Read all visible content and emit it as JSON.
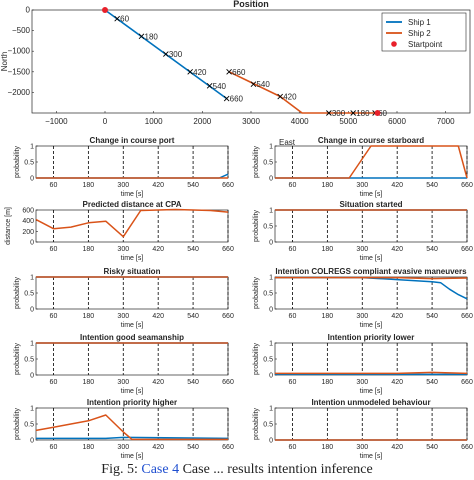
{
  "chart_data": [
    {
      "id": "position",
      "type": "line",
      "title": "Position",
      "xlabel": "East",
      "ylabel": "North",
      "xlim": [
        -1500,
        7500
      ],
      "ylim": [
        -2500,
        0
      ],
      "xticks": [
        -1000,
        0,
        1000,
        2000,
        3000,
        4000,
        5000,
        6000,
        7000
      ],
      "yticks": [
        0,
        -500,
        -1000,
        -1500,
        -2000
      ],
      "grid": false,
      "legend": "top-right",
      "series": [
        {
          "name": "Ship 1",
          "color": "#0072bd",
          "x": [
            0,
            2500
          ],
          "y": [
            0,
            -2150
          ],
          "markers": [
            {
              "x": 250,
              "y": -210,
              "label": "60"
            },
            {
              "x": 750,
              "y": -640,
              "label": "180"
            },
            {
              "x": 1250,
              "y": -1070,
              "label": "300"
            },
            {
              "x": 1750,
              "y": -1500,
              "label": "420"
            },
            {
              "x": 2150,
              "y": -1840,
              "label": "540"
            },
            {
              "x": 2500,
              "y": -2150,
              "label": "660"
            }
          ]
        },
        {
          "name": "Ship 2",
          "color": "#d95319",
          "x": [
            5600,
            4600,
            4050,
            3600,
            2550
          ],
          "y": [
            -2500,
            -2500,
            -2500,
            -2100,
            -1500
          ],
          "markers": [
            {
              "x": 5550,
              "y": -2500,
              "label": "60"
            },
            {
              "x": 5100,
              "y": -2500,
              "label": "180"
            },
            {
              "x": 4600,
              "y": -2500,
              "label": "300"
            },
            {
              "x": 3600,
              "y": -2100,
              "label": "420"
            },
            {
              "x": 3050,
              "y": -1800,
              "label": "540"
            },
            {
              "x": 2550,
              "y": -1500,
              "label": "660"
            }
          ]
        },
        {
          "name": "Startpoint",
          "color": "#e8202a",
          "points": [
            {
              "x": 0,
              "y": 0
            },
            {
              "x": 5600,
              "y": -2500
            }
          ]
        }
      ]
    },
    {
      "id": "cc-port",
      "type": "line",
      "title": "Change in course port",
      "xlabel": "time [s]",
      "ylabel": "probability",
      "xlim": [
        0,
        660
      ],
      "ylim": [
        0,
        1
      ],
      "yticks": [
        0,
        0.5,
        1
      ],
      "xticks": [
        60,
        180,
        300,
        420,
        540,
        660
      ],
      "vlines": [
        60,
        180,
        300,
        420,
        540,
        660
      ],
      "series": [
        {
          "name": "Ship 1",
          "color": "#0072bd",
          "x": [
            0,
            630,
            660
          ],
          "y": [
            0,
            0,
            0.12
          ]
        },
        {
          "name": "Ship 2",
          "color": "#d95319",
          "x": [
            0,
            660
          ],
          "y": [
            0,
            0
          ]
        }
      ]
    },
    {
      "id": "cc-starboard",
      "type": "line",
      "title": "Change in course starboard",
      "xlabel": "time [s]",
      "ylabel": "probability",
      "xlim": [
        0,
        660
      ],
      "ylim": [
        0,
        1
      ],
      "yticks": [
        0,
        0.5,
        1
      ],
      "xticks": [
        60,
        180,
        300,
        420,
        540,
        660
      ],
      "vlines": [
        60,
        180,
        300,
        420,
        540,
        660
      ],
      "series": [
        {
          "name": "Ship 1",
          "color": "#0072bd",
          "x": [
            0,
            660
          ],
          "y": [
            0,
            0
          ]
        },
        {
          "name": "Ship 2",
          "color": "#d95319",
          "x": [
            0,
            255,
            330,
            630,
            660
          ],
          "y": [
            0,
            0,
            1,
            1,
            0
          ]
        }
      ]
    },
    {
      "id": "pred-dist",
      "type": "line",
      "title": "Predicted distance at CPA",
      "xlabel": "time [s]",
      "ylabel": "distance [m]",
      "xlim": [
        0,
        660
      ],
      "ylim": [
        0,
        600
      ],
      "yticks": [
        0,
        200,
        400,
        600
      ],
      "xticks": [
        60,
        180,
        300,
        420,
        540,
        660
      ],
      "vlines": [
        60,
        180,
        300,
        420,
        540,
        660
      ],
      "series": [
        {
          "name": "Ship 2",
          "color": "#d95319",
          "x": [
            0,
            60,
            120,
            180,
            240,
            300,
            360,
            420,
            480,
            540,
            600,
            660
          ],
          "y": [
            420,
            250,
            280,
            360,
            390,
            100,
            590,
            600,
            610,
            600,
            590,
            560
          ]
        }
      ]
    },
    {
      "id": "situation-started",
      "type": "line",
      "title": "Situation started",
      "xlabel": "time [s]",
      "ylabel": "probability",
      "xlim": [
        0,
        660
      ],
      "ylim": [
        0,
        1
      ],
      "yticks": [
        0,
        0.5,
        1
      ],
      "xticks": [
        60,
        180,
        300,
        420,
        540,
        660
      ],
      "vlines": [
        60,
        180,
        300,
        420,
        540,
        660
      ],
      "series": [
        {
          "name": "Ship 1",
          "color": "#0072bd",
          "x": [
            0,
            660
          ],
          "y": [
            1,
            1
          ]
        },
        {
          "name": "Ship 2",
          "color": "#d95319",
          "x": [
            0,
            660
          ],
          "y": [
            1,
            1
          ]
        }
      ]
    },
    {
      "id": "risky",
      "type": "line",
      "title": "Risky situation",
      "xlabel": "time [s]",
      "ylabel": "probability",
      "xlim": [
        0,
        660
      ],
      "ylim": [
        0,
        1
      ],
      "yticks": [
        0,
        0.5,
        1
      ],
      "xticks": [
        60,
        180,
        300,
        420,
        540,
        660
      ],
      "vlines": [
        60,
        180,
        300,
        420,
        540,
        660
      ],
      "series": [
        {
          "name": "Ship 1",
          "color": "#0072bd",
          "x": [
            0,
            660
          ],
          "y": [
            1,
            1
          ]
        },
        {
          "name": "Ship 2",
          "color": "#d95319",
          "x": [
            0,
            660
          ],
          "y": [
            1,
            1
          ]
        }
      ]
    },
    {
      "id": "colregs",
      "type": "line",
      "title": "Intention COLREGS compliant evasive maneuvers",
      "xlabel": "time [s]",
      "ylabel": "probability",
      "xlim": [
        0,
        660
      ],
      "ylim": [
        0,
        1
      ],
      "yticks": [
        0,
        0.5,
        1
      ],
      "xticks": [
        60,
        180,
        300,
        420,
        540,
        660
      ],
      "vlines": [
        60,
        180,
        300,
        420,
        540,
        660
      ],
      "series": [
        {
          "name": "Ship 1",
          "color": "#0072bd",
          "x": [
            0,
            300,
            420,
            540,
            570,
            600,
            630,
            660
          ],
          "y": [
            0.98,
            0.98,
            0.92,
            0.85,
            0.82,
            0.62,
            0.45,
            0.32
          ]
        },
        {
          "name": "Ship 2",
          "color": "#d95319",
          "x": [
            0,
            300,
            420,
            540,
            660
          ],
          "y": [
            0.98,
            0.98,
            0.98,
            0.95,
            0.97
          ]
        }
      ]
    },
    {
      "id": "seamanship",
      "type": "line",
      "title": "Intention good seamanship",
      "xlabel": "time [s]",
      "ylabel": "probability",
      "xlim": [
        0,
        660
      ],
      "ylim": [
        0,
        1
      ],
      "yticks": [
        0,
        0.5,
        1
      ],
      "xticks": [
        60,
        180,
        300,
        420,
        540,
        660
      ],
      "vlines": [
        60,
        180,
        300,
        420,
        540,
        660
      ],
      "series": [
        {
          "name": "Ship 1",
          "color": "#0072bd",
          "x": [
            0,
            660
          ],
          "y": [
            1,
            1
          ]
        },
        {
          "name": "Ship 2",
          "color": "#d95319",
          "x": [
            0,
            660
          ],
          "y": [
            1,
            1
          ]
        }
      ]
    },
    {
      "id": "priority-lower",
      "type": "line",
      "title": "Intention priority lower",
      "xlabel": "time [s]",
      "ylabel": "probability",
      "xlim": [
        0,
        660
      ],
      "ylim": [
        0,
        1
      ],
      "yticks": [
        0,
        0.5,
        1
      ],
      "xticks": [
        60,
        180,
        300,
        420,
        540,
        660
      ],
      "vlines": [
        60,
        180,
        300,
        420,
        540,
        660
      ],
      "series": [
        {
          "name": "Ship 1",
          "color": "#0072bd",
          "x": [
            0,
            660
          ],
          "y": [
            0.02,
            0.02
          ]
        },
        {
          "name": "Ship 2",
          "color": "#d95319",
          "x": [
            0,
            300,
            420,
            540,
            660
          ],
          "y": [
            0.05,
            0.05,
            0.05,
            0.08,
            0.05
          ]
        }
      ]
    },
    {
      "id": "priority-higher",
      "type": "line",
      "title": "Intention priority higher",
      "xlabel": "time [s]",
      "ylabel": "probability",
      "xlim": [
        0,
        660
      ],
      "ylim": [
        0,
        1
      ],
      "yticks": [
        0,
        0.5,
        1
      ],
      "xticks": [
        60,
        180,
        300,
        420,
        540,
        660
      ],
      "vlines": [
        60,
        180,
        300,
        420,
        540,
        660
      ],
      "series": [
        {
          "name": "Ship 1",
          "color": "#0072bd",
          "x": [
            0,
            240,
            300,
            660
          ],
          "y": [
            0.05,
            0.05,
            0.08,
            0.05
          ]
        },
        {
          "name": "Ship 2",
          "color": "#d95319",
          "x": [
            0,
            60,
            120,
            180,
            240,
            300,
            330,
            660
          ],
          "y": [
            0.3,
            0.4,
            0.5,
            0.6,
            0.78,
            0.25,
            0.02,
            0.02
          ]
        }
      ]
    },
    {
      "id": "unmodeled",
      "type": "line",
      "title": "Intention unmodeled behaviour",
      "xlabel": "time [s]",
      "ylabel": "probability",
      "xlim": [
        0,
        660
      ],
      "ylim": [
        0,
        1
      ],
      "yticks": [
        0,
        0.5,
        1
      ],
      "xticks": [
        60,
        180,
        300,
        420,
        540,
        660
      ],
      "vlines": [
        60,
        180,
        300,
        420,
        540,
        660
      ],
      "series": [
        {
          "name": "Ship 1",
          "color": "#0072bd",
          "x": [
            0,
            660
          ],
          "y": [
            0,
            0
          ]
        },
        {
          "name": "Ship 2",
          "color": "#d95319",
          "x": [
            0,
            660
          ],
          "y": [
            0,
            0
          ]
        }
      ]
    }
  ],
  "caption": {
    "prefix": "Fig. 5:",
    "link": "Case 4",
    "suffix": "Case ... results intention inference"
  }
}
